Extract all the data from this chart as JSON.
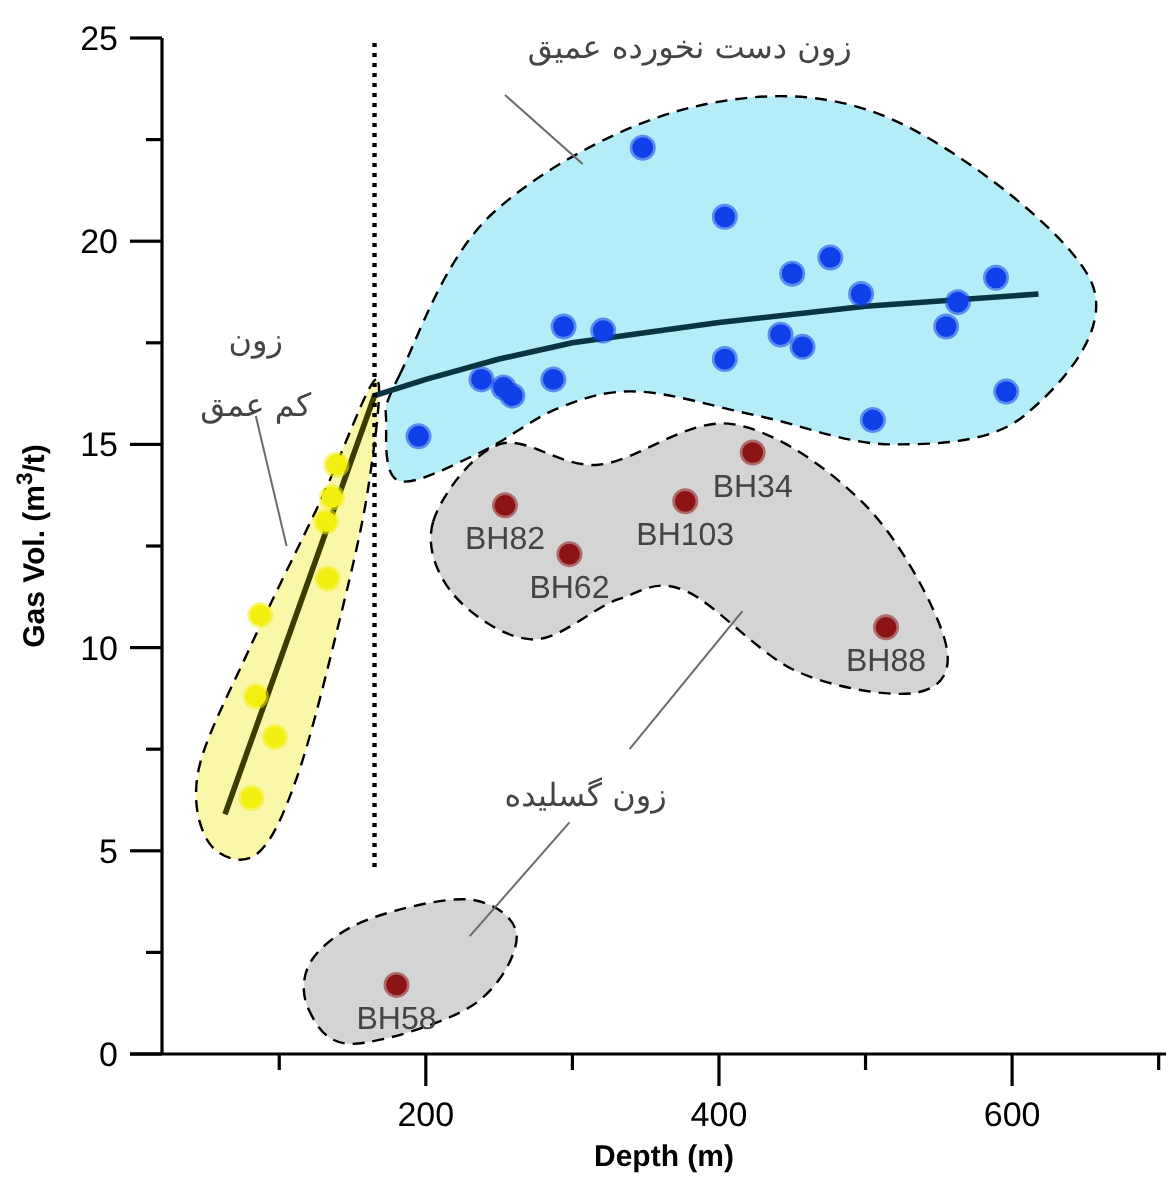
{
  "chart_data": {
    "type": "scatter",
    "xlabel": "Depth (m)",
    "ylabel": "Gas Vol. (m$^{3}$/t)",
    "xlim": [
      20,
      705
    ],
    "ylim": [
      0,
      25
    ],
    "xticks": [
      {
        "value": 100,
        "label": null
      },
      200,
      {
        "value": 300,
        "label": null
      },
      400,
      {
        "value": 500,
        "label": null
      },
      600,
      {
        "value": 700,
        "label": null
      }
    ],
    "yticks": [
      0,
      {
        "value": 2.5,
        "label": null
      },
      5,
      {
        "value": 7.5,
        "label": null
      },
      10,
      {
        "value": 12.5,
        "label": null
      },
      15,
      {
        "value": 17.5,
        "label": null
      },
      20,
      {
        "value": 22.5,
        "label": null
      },
      25
    ],
    "marker": "circle",
    "series": [
      {
        "color": "#f2ee10",
        "x": [
          81,
          97,
          84,
          87,
          133,
          132,
          136,
          139
        ],
        "values": [
          6.3,
          7.8,
          8.8,
          10.8,
          11.7,
          13.1,
          13.7,
          14.5
        ]
      },
      {
        "color": "#1040e8",
        "x": [
          195,
          238,
          253,
          259,
          287,
          294,
          321,
          348,
          404,
          404,
          442,
          450,
          457,
          476,
          497,
          505,
          555,
          563,
          589,
          596
        ],
        "values": [
          15.2,
          16.6,
          16.4,
          16.2,
          16.6,
          17.9,
          17.8,
          22.3,
          20.6,
          17.1,
          17.7,
          19.2,
          17.4,
          19.6,
          18.7,
          15.6,
          17.9,
          18.5,
          19.1,
          16.3
        ]
      },
      {
        "color": "#8c1414",
        "x": [
          254,
          298,
          377,
          423,
          514,
          180
        ],
        "values": [
          13.5,
          12.3,
          13.6,
          14.8,
          10.5,
          1.7
        ]
      },
      {
        "type": "line",
        "marker": "none",
        "color": "#3c3c00",
        "x": [
          63,
          165
        ],
        "values": [
          5.9,
          16.2
        ]
      },
      {
        "type": "line",
        "marker": "none",
        "color": "#0a3440",
        "x": [
          165,
          200,
          250,
          300,
          400,
          500,
          618
        ],
        "values": [
          16.2,
          16.6,
          17.1,
          17.5,
          18.0,
          18.4,
          18.7
        ]
      },
      {
        "type": "line",
        "marker": "none",
        "color": "#000000",
        "line_style": "dotted",
        "x": [
          165,
          165
        ],
        "values": [
          4.6,
          25
        ]
      }
    ],
    "annotations": [
      "زون دست نخورده عمیق",
      "زون",
      "کم عمق",
      "زون گسلیده",
      {
        "text": "BH82",
        "x": 254,
        "y": 13.5
      },
      {
        "text": "BH62",
        "x": 298,
        "y": 12.3
      },
      {
        "text": "BH103",
        "x": 377,
        "y": 13.6
      },
      {
        "text": "BH34",
        "x": 423,
        "y": 14.8
      },
      {
        "text": "BH88",
        "x": 514,
        "y": 10.5
      },
      {
        "text": "BH58",
        "x": 180,
        "y": 1.7
      }
    ]
  }
}
